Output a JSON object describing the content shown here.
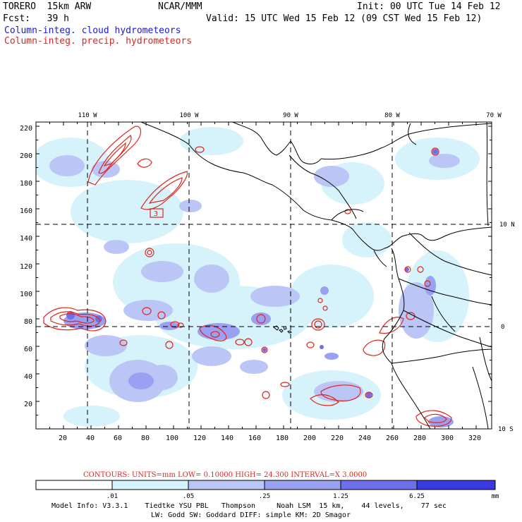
{
  "header": {
    "model": "TORERO  15km ARW",
    "center": "NCAR/MMM",
    "init": "Init: 00 UTC Tue 14 Feb 12",
    "fcst": "Fcst:   39 h",
    "valid": "Valid: 15 UTC Wed 15 Feb 12 (09 CST Wed 15 Feb 12)",
    "field_cloud": "Column-integ. cloud hydrometeors",
    "field_precip": "Column-integ. precip. hydrometeors"
  },
  "colors": {
    "cloud_text": "#1a1ad6",
    "precip_text": "#e0241b",
    "precip_contour": "#e0241b",
    "shade_1": "#d6f2fb",
    "shade_2": "#bcc6f6",
    "shade_3": "#9aa0f2",
    "shade_4": "#6f6fe8",
    "shade_5": "#3a3ae0"
  },
  "map": {
    "top_lon_labels": [
      "110 W",
      "100 W",
      "90 W",
      "80 W",
      "70 W"
    ],
    "right_lat_labels": [
      "10 N",
      "0",
      "10 S"
    ],
    "y_ticks": [
      "220",
      "200",
      "180",
      "160",
      "140",
      "120",
      "100",
      "80",
      "60",
      "40",
      "20"
    ],
    "x_ticks": [
      "20",
      "40",
      "60",
      "80",
      "100",
      "120",
      "140",
      "160",
      "180",
      "200",
      "220",
      "240",
      "260",
      "280",
      "300",
      "320"
    ],
    "contour_label": "3"
  },
  "legend": {
    "contour_info": "CONTOURS:  UNITS=mm  LOW= 0.10000      HIGH=  24.300      INTERVAL=X  3.0000",
    "bins": [
      ".01",
      ".05",
      ".25",
      "1.25",
      "6.25"
    ],
    "unit": "mm"
  },
  "footer": {
    "line1": "Model Info: V3.3.1    Tiedtke YSU PBL   Thompson     Noah LSM  15 km,    44 levels,    77 sec",
    "line2": "LW: Godd SW: Goddard DIFF: simple KM: 2D Smagor"
  }
}
